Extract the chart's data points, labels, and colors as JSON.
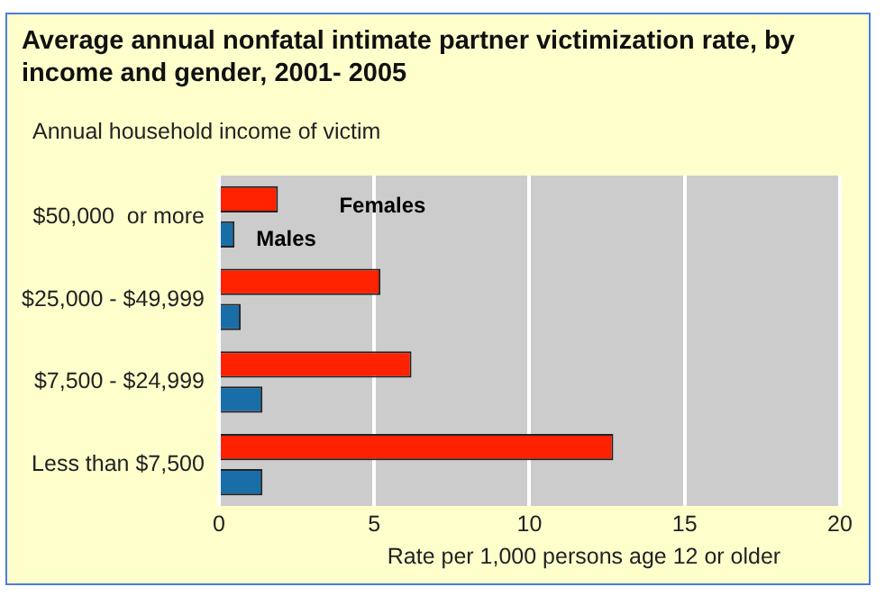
{
  "chart_data": {
    "type": "bar",
    "orientation": "horizontal",
    "title": "Average annual nonfatal intimate partner victimization rate, by income and gender, 2001- 2005",
    "ylabel": "Annual household income of victim",
    "xlabel": "Rate per 1,000 persons age 12 or older",
    "categories": [
      "$50,000  or more",
      "$25,000 - $49,999",
      "$7,500 - $24,999",
      "Less than $7,500"
    ],
    "series": [
      {
        "name": "Females",
        "color": "#ff2200",
        "values": [
          1.9,
          5.2,
          6.2,
          12.7
        ]
      },
      {
        "name": "Males",
        "color": "#1a6ea8",
        "values": [
          0.5,
          0.7,
          1.4,
          1.4
        ]
      }
    ],
    "xlim": [
      0,
      20
    ],
    "xticks": [
      0,
      5,
      10,
      15,
      20
    ],
    "grid": "x",
    "legend": false
  }
}
